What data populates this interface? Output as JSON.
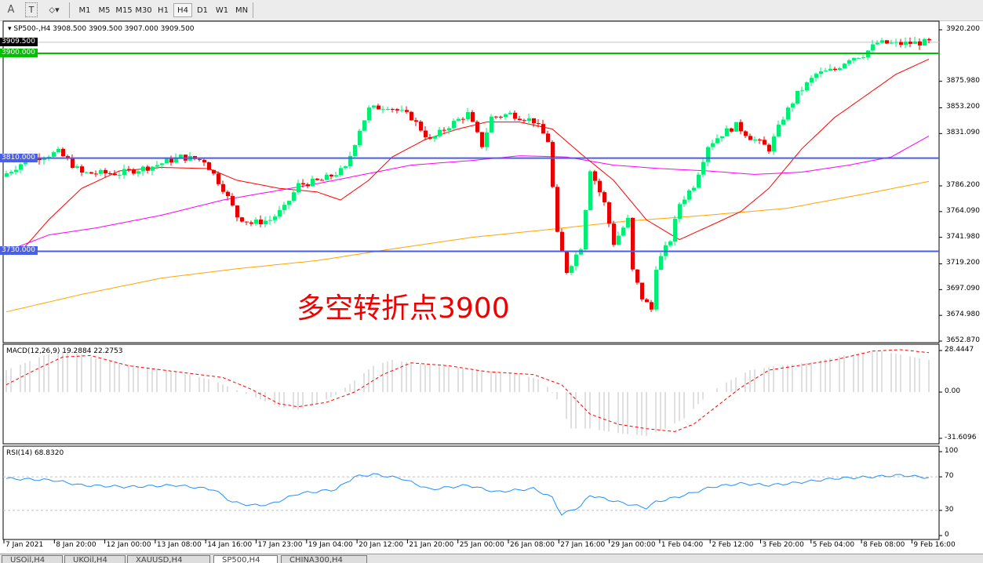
{
  "toolbar": {
    "tools": [
      {
        "label": "A",
        "icon": "text-icon"
      },
      {
        "label": "T",
        "icon": "text-label-icon"
      },
      {
        "label": "",
        "icon": "shapes-dropdown-icon"
      }
    ],
    "timeframes": [
      "M1",
      "M5",
      "M15",
      "M30",
      "H1",
      "H4",
      "D1",
      "W1",
      "MN"
    ],
    "active_timeframe": "H4"
  },
  "main": {
    "title": "SP500-,H4  3908.500 3909.500 3907.000 3909.500",
    "price_ticks": [
      "3920.200",
      "3875.980",
      "3853.200",
      "3831.090",
      "3786.200",
      "3764.090",
      "3741.980",
      "3719.200",
      "3697.090",
      "3674.980",
      "3652.870"
    ],
    "price_tick_values": [
      3920.2,
      3875.98,
      3853.2,
      3831.09,
      3786.2,
      3764.09,
      3741.98,
      3719.2,
      3697.09,
      3674.98,
      3652.87
    ],
    "price_range": [
      3652.87,
      3920.2
    ],
    "current_price": {
      "label": "3909.500",
      "value": 3909.5
    },
    "levels": [
      {
        "label": "3900.000",
        "value": 3900,
        "color": "#00c000"
      },
      {
        "label": "3810.000",
        "value": 3810,
        "color": "#4a5ee8"
      },
      {
        "label": "3730.000",
        "value": 3730,
        "color": "#4a5ee8"
      }
    ],
    "annotation": "多空转折点3900",
    "colors": {
      "bull": "#00ee76",
      "bear": "#e80000",
      "ma_fast": "#ff0000",
      "ma_mid": "#ff00ff",
      "ma_slow": "#ffa500"
    }
  },
  "chart_data": [
    {
      "type": "candlestick",
      "bars": 197,
      "close_path": [
        [
          0,
          3797
        ],
        [
          4,
          3808
        ],
        [
          11,
          3815
        ],
        [
          16,
          3797
        ],
        [
          24,
          3797
        ],
        [
          31,
          3803
        ],
        [
          37,
          3811
        ],
        [
          42,
          3808
        ],
        [
          46,
          3784
        ],
        [
          49,
          3760
        ],
        [
          52,
          3754
        ],
        [
          56,
          3757
        ],
        [
          59,
          3767
        ],
        [
          62,
          3787
        ],
        [
          67,
          3791
        ],
        [
          72,
          3801
        ],
        [
          75,
          3835
        ],
        [
          77,
          3852
        ],
        [
          81,
          3855
        ],
        [
          86,
          3845
        ],
        [
          90,
          3825
        ],
        [
          94,
          3838
        ],
        [
          98,
          3848
        ],
        [
          101,
          3821
        ],
        [
          103,
          3845
        ],
        [
          107,
          3848
        ],
        [
          112,
          3842
        ],
        [
          115,
          3825
        ],
        [
          117,
          3744
        ],
        [
          119,
          3713
        ],
        [
          122,
          3734
        ],
        [
          124,
          3801
        ],
        [
          127,
          3771
        ],
        [
          129,
          3737
        ],
        [
          132,
          3757
        ],
        [
          133,
          3713
        ],
        [
          135,
          3690
        ],
        [
          137,
          3680
        ],
        [
          138,
          3717
        ],
        [
          141,
          3740
        ],
        [
          143,
          3771
        ],
        [
          146,
          3787
        ],
        [
          149,
          3821
        ],
        [
          152,
          3831
        ],
        [
          155,
          3838
        ],
        [
          158,
          3828
        ],
        [
          162,
          3818
        ],
        [
          165,
          3845
        ],
        [
          168,
          3865
        ],
        [
          172,
          3882
        ],
        [
          176,
          3886
        ],
        [
          179,
          3896
        ],
        [
          182,
          3899
        ],
        [
          185,
          3909
        ],
        [
          189,
          3908
        ],
        [
          193,
          3909
        ],
        [
          196,
          3909.5
        ]
      ],
      "ma_fast": [
        [
          0,
          3727
        ],
        [
          4,
          3734
        ],
        [
          9,
          3757
        ],
        [
          16,
          3784
        ],
        [
          24,
          3799
        ],
        [
          33,
          3802
        ],
        [
          43,
          3801
        ],
        [
          49,
          3791
        ],
        [
          58,
          3784
        ],
        [
          66,
          3781
        ],
        [
          71,
          3774
        ],
        [
          77,
          3791
        ],
        [
          82,
          3811
        ],
        [
          89,
          3826
        ],
        [
          96,
          3835
        ],
        [
          102,
          3841
        ],
        [
          109,
          3841
        ],
        [
          116,
          3835
        ],
        [
          122,
          3814
        ],
        [
          129,
          3791
        ],
        [
          136,
          3757
        ],
        [
          143,
          3740
        ],
        [
          149,
          3751
        ],
        [
          156,
          3764
        ],
        [
          162,
          3784
        ],
        [
          169,
          3818
        ],
        [
          176,
          3845
        ],
        [
          182,
          3862
        ],
        [
          189,
          3882
        ],
        [
          196,
          3895
        ]
      ],
      "ma_mid": [
        [
          0,
          3730
        ],
        [
          9,
          3744
        ],
        [
          19,
          3750
        ],
        [
          33,
          3761
        ],
        [
          46,
          3774
        ],
        [
          56,
          3781
        ],
        [
          66,
          3788
        ],
        [
          76,
          3796
        ],
        [
          86,
          3804
        ],
        [
          99,
          3808
        ],
        [
          109,
          3812
        ],
        [
          119,
          3811
        ],
        [
          129,
          3804
        ],
        [
          139,
          3801
        ],
        [
          149,
          3799
        ],
        [
          159,
          3796
        ],
        [
          169,
          3798
        ],
        [
          179,
          3804
        ],
        [
          188,
          3811
        ],
        [
          196,
          3829
        ]
      ],
      "ma_slow": [
        [
          0,
          3678
        ],
        [
          16,
          3693
        ],
        [
          33,
          3707
        ],
        [
          49,
          3715
        ],
        [
          66,
          3722
        ],
        [
          82,
          3732
        ],
        [
          99,
          3742
        ],
        [
          116,
          3749
        ],
        [
          132,
          3756
        ],
        [
          149,
          3761
        ],
        [
          166,
          3767
        ],
        [
          182,
          3779
        ],
        [
          196,
          3790
        ]
      ]
    },
    {
      "type": "macd",
      "label": "MACD(12,26,9) 19.2884 22.2753",
      "ticks": [
        "28.4447",
        "0.00",
        "-31.6096"
      ],
      "range": [
        -31.6096,
        28.4447
      ],
      "histogram": [
        [
          0,
          15
        ],
        [
          4,
          20
        ],
        [
          8,
          25
        ],
        [
          12,
          28
        ],
        [
          16,
          26
        ],
        [
          20,
          22
        ],
        [
          28,
          18
        ],
        [
          36,
          14
        ],
        [
          44,
          8
        ],
        [
          50,
          0
        ],
        [
          54,
          -5
        ],
        [
          58,
          -10
        ],
        [
          62,
          -12
        ],
        [
          66,
          -8
        ],
        [
          70,
          -2
        ],
        [
          74,
          8
        ],
        [
          78,
          18
        ],
        [
          82,
          22
        ],
        [
          86,
          20
        ],
        [
          92,
          18
        ],
        [
          100,
          15
        ],
        [
          108,
          13
        ],
        [
          114,
          8
        ],
        [
          117,
          -5
        ],
        [
          120,
          -25
        ],
        [
          124,
          -25
        ],
        [
          130,
          -28
        ],
        [
          136,
          -30
        ],
        [
          140,
          -25
        ],
        [
          144,
          -18
        ],
        [
          148,
          -5
        ],
        [
          152,
          5
        ],
        [
          158,
          15
        ],
        [
          164,
          18
        ],
        [
          170,
          20
        ],
        [
          178,
          25
        ],
        [
          186,
          28
        ],
        [
          196,
          22
        ]
      ],
      "signal": [
        [
          0,
          5
        ],
        [
          6,
          15
        ],
        [
          12,
          24
        ],
        [
          18,
          25
        ],
        [
          26,
          18
        ],
        [
          36,
          14
        ],
        [
          46,
          10
        ],
        [
          52,
          2
        ],
        [
          58,
          -8
        ],
        [
          62,
          -10
        ],
        [
          68,
          -7
        ],
        [
          74,
          0
        ],
        [
          80,
          12
        ],
        [
          86,
          20
        ],
        [
          94,
          18
        ],
        [
          102,
          14
        ],
        [
          112,
          12
        ],
        [
          118,
          5
        ],
        [
          124,
          -15
        ],
        [
          130,
          -22
        ],
        [
          136,
          -25
        ],
        [
          142,
          -27
        ],
        [
          146,
          -22
        ],
        [
          150,
          -12
        ],
        [
          156,
          3
        ],
        [
          162,
          15
        ],
        [
          168,
          18
        ],
        [
          176,
          22
        ],
        [
          184,
          28
        ],
        [
          190,
          29
        ],
        [
          196,
          27
        ]
      ]
    },
    {
      "type": "line",
      "label": "RSI(14) 68.8320",
      "ticks": [
        "100",
        "70",
        "30",
        "0"
      ],
      "range": [
        0,
        100
      ],
      "levels": [
        70,
        30
      ],
      "values": [
        [
          0,
          68
        ],
        [
          10,
          66
        ],
        [
          16,
          60
        ],
        [
          26,
          58
        ],
        [
          36,
          60
        ],
        [
          44,
          55
        ],
        [
          48,
          40
        ],
        [
          52,
          36
        ],
        [
          56,
          37
        ],
        [
          62,
          50
        ],
        [
          70,
          55
        ],
        [
          74,
          70
        ],
        [
          78,
          73
        ],
        [
          84,
          68
        ],
        [
          90,
          55
        ],
        [
          98,
          60
        ],
        [
          104,
          52
        ],
        [
          112,
          56
        ],
        [
          116,
          45
        ],
        [
          118,
          25
        ],
        [
          122,
          35
        ],
        [
          124,
          48
        ],
        [
          130,
          40
        ],
        [
          136,
          33
        ],
        [
          138,
          40
        ],
        [
          144,
          48
        ],
        [
          150,
          58
        ],
        [
          156,
          62
        ],
        [
          162,
          60
        ],
        [
          168,
          63
        ],
        [
          176,
          68
        ],
        [
          184,
          70
        ],
        [
          190,
          72
        ],
        [
          196,
          69
        ]
      ]
    }
  ],
  "time_axis": [
    "7 Jan 2021",
    "8 Jan 20:00",
    "12 Jan 00:00",
    "13 Jan 08:00",
    "14 Jan 16:00",
    "17 Jan 23:00",
    "19 Jan 04:00",
    "20 Jan 12:00",
    "21 Jan 20:00",
    "25 Jan 00:00",
    "26 Jan 08:00",
    "27 Jan 16:00",
    "29 Jan 00:00",
    "1 Feb 04:00",
    "2 Feb 12:00",
    "3 Feb 20:00",
    "5 Feb 04:00",
    "8 Feb 08:00",
    "9 Feb 16:00"
  ],
  "tabs": [
    {
      "label": "USOil,H4",
      "active": false
    },
    {
      "label": "UKOil,H4",
      "active": false
    },
    {
      "label": "XAUUSD,H4",
      "active": false
    },
    {
      "label": "SP500,H4",
      "active": true
    },
    {
      "label": "CHINA300,H4",
      "active": false
    }
  ]
}
